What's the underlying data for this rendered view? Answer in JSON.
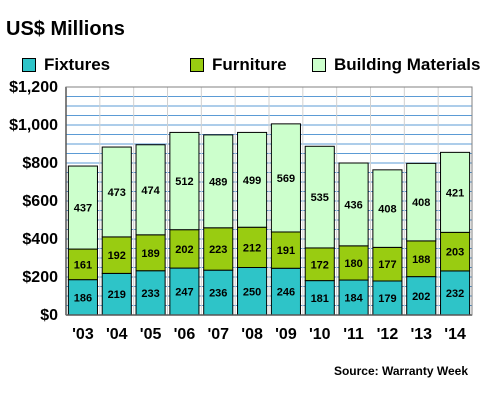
{
  "chart_data": {
    "type": "stacked-bar",
    "ylabel": "US$ Millions",
    "categories": [
      "'03",
      "'04",
      "'05",
      "'06",
      "'07",
      "'08",
      "'09",
      "'10",
      "'11",
      "'12",
      "'13",
      "'14"
    ],
    "series": [
      {
        "name": "Fixtures",
        "color": "#2ec4c8",
        "values": [
          186,
          219,
          233,
          247,
          236,
          250,
          246,
          181,
          184,
          179,
          202,
          232
        ]
      },
      {
        "name": "Furniture",
        "color": "#99cc11",
        "values": [
          161,
          192,
          189,
          202,
          223,
          212,
          191,
          172,
          180,
          177,
          188,
          203
        ]
      },
      {
        "name": "Building Materials",
        "color": "#ccffcc",
        "values": [
          437,
          473,
          474,
          512,
          489,
          499,
          569,
          535,
          436,
          408,
          408,
          421
        ]
      }
    ],
    "yticks": [
      "$0",
      "$200",
      "$400",
      "$600",
      "$800",
      "$1,000",
      "$1,200"
    ],
    "ylim": [
      0,
      1200
    ],
    "grid": true,
    "legend_position": "top"
  },
  "source": "Source: Warranty Week"
}
